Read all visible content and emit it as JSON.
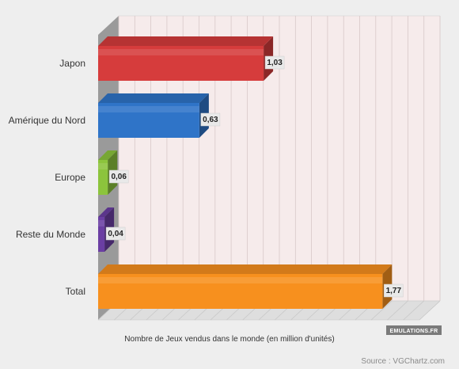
{
  "chart_data": {
    "type": "bar",
    "orientation": "horizontal",
    "style": "3d",
    "categories": [
      "Japon",
      "Amérique du Nord",
      "Europe",
      "Reste du Monde",
      "Total"
    ],
    "values": [
      1.03,
      0.63,
      0.06,
      0.04,
      1.77
    ],
    "value_labels": [
      "1,03",
      "0,63",
      "0,06",
      "0,04",
      "1,77"
    ],
    "colors": [
      "#d63c3c",
      "#2f74c8",
      "#8cc43c",
      "#6b3ea3",
      "#f7901e"
    ],
    "xlim": [
      0,
      2
    ],
    "grid": true,
    "xlabel": "Nombre de Jeux vendus dans le monde (en million d'unités)",
    "ylabel": ""
  },
  "source": "Source : VGChartz.com",
  "watermark": "EMULATIONS.FR"
}
